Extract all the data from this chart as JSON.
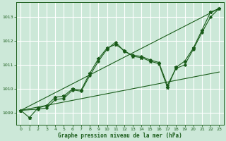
{
  "background_color": "#cce8d8",
  "grid_color": "#ffffff",
  "line_color": "#1a5c1a",
  "title": "Graphe pression niveau de la mer (hPa)",
  "xlim": [
    -0.5,
    23.5
  ],
  "ylim": [
    1008.5,
    1013.6
  ],
  "yticks": [
    1009,
    1010,
    1011,
    1012,
    1013
  ],
  "xticks": [
    0,
    1,
    2,
    3,
    4,
    5,
    6,
    7,
    8,
    9,
    10,
    11,
    12,
    13,
    14,
    15,
    16,
    17,
    18,
    19,
    20,
    21,
    22,
    23
  ],
  "series1_x": [
    0,
    1,
    2,
    3,
    4,
    5,
    6,
    7,
    8,
    9,
    10,
    11,
    12,
    13,
    14,
    15,
    16,
    17,
    18,
    19,
    20,
    21,
    22,
    23
  ],
  "series1_y": [
    1009.1,
    1008.8,
    1009.2,
    1009.3,
    1009.65,
    1009.7,
    1010.0,
    1009.95,
    1010.65,
    1011.25,
    1011.7,
    1011.85,
    1011.6,
    1011.35,
    1011.3,
    1011.15,
    1011.05,
    1010.05,
    1010.9,
    1011.15,
    1011.7,
    1012.45,
    1013.2,
    1013.35
  ],
  "series2_x": [
    0,
    2,
    3,
    4,
    5,
    6,
    7,
    8,
    9,
    10,
    11,
    12,
    13,
    14,
    15,
    16,
    17,
    18,
    19,
    20,
    21,
    22,
    23
  ],
  "series2_y": [
    1009.1,
    1009.15,
    1009.2,
    1009.55,
    1009.6,
    1009.95,
    1009.9,
    1010.55,
    1011.15,
    1011.65,
    1011.95,
    1011.55,
    1011.4,
    1011.35,
    1011.2,
    1011.1,
    1010.15,
    1010.85,
    1011.0,
    1011.65,
    1012.35,
    1013.0,
    1013.35
  ],
  "trend1_x": [
    0,
    23
  ],
  "trend1_y": [
    1009.1,
    1013.35
  ],
  "trend2_x": [
    0,
    23
  ],
  "trend2_y": [
    1009.1,
    1010.7
  ]
}
